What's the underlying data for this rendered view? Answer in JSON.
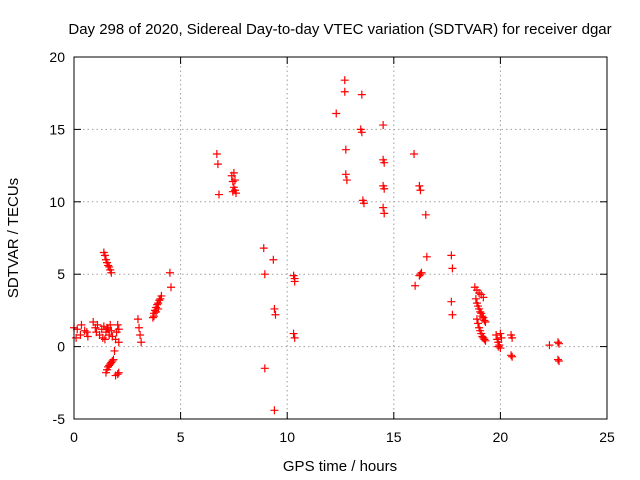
{
  "chart_data": {
    "type": "scatter",
    "title": "Day 298 of 2020, Sidereal Day-to-day VTEC variation (SDTVAR) for receiver dgar",
    "xlabel": "GPS time / hours",
    "ylabel": "SDTVAR / TECUs",
    "xlim": [
      0,
      25
    ],
    "ylim": [
      -5,
      20
    ],
    "xticks": [
      0,
      5,
      10,
      15,
      20,
      25
    ],
    "yticks": [
      -5,
      0,
      5,
      10,
      15,
      20
    ],
    "grid": true,
    "marker": "+",
    "series": [
      {
        "name": "SDTVAR",
        "color": "#ff0000",
        "points": [
          [
            0.0,
            1.3
          ],
          [
            0.1,
            0.6
          ],
          [
            0.15,
            1.2
          ],
          [
            0.3,
            0.8
          ],
          [
            0.35,
            1.5
          ],
          [
            0.5,
            1.1
          ],
          [
            0.6,
            1.0
          ],
          [
            0.65,
            0.7
          ],
          [
            0.9,
            1.7
          ],
          [
            1.0,
            1.3
          ],
          [
            1.05,
            1.0
          ],
          [
            1.1,
            1.5
          ],
          [
            1.2,
            0.8
          ],
          [
            1.3,
            1.2
          ],
          [
            1.35,
            0.6
          ],
          [
            1.4,
            1.4
          ],
          [
            1.45,
            0.5
          ],
          [
            1.5,
            1.0
          ],
          [
            1.55,
            1.3
          ],
          [
            1.6,
            1.2
          ],
          [
            1.65,
            0.8
          ],
          [
            1.7,
            1.5
          ],
          [
            1.75,
            1.1
          ],
          [
            1.8,
            0.7
          ],
          [
            1.4,
            6.5
          ],
          [
            1.45,
            6.3
          ],
          [
            1.5,
            6.0
          ],
          [
            1.55,
            5.8
          ],
          [
            1.6,
            5.6
          ],
          [
            1.65,
            5.5
          ],
          [
            1.7,
            5.3
          ],
          [
            1.75,
            5.1
          ],
          [
            1.5,
            -1.8
          ],
          [
            1.55,
            -1.6
          ],
          [
            1.6,
            -1.4
          ],
          [
            1.65,
            -1.3
          ],
          [
            1.7,
            -1.2
          ],
          [
            1.75,
            -1.1
          ],
          [
            1.8,
            -1.0
          ],
          [
            1.85,
            -0.9
          ],
          [
            1.9,
            -0.3
          ],
          [
            1.95,
            0.5
          ],
          [
            2.0,
            1.0
          ],
          [
            2.05,
            1.5
          ],
          [
            2.1,
            1.2
          ],
          [
            2.1,
            0.3
          ],
          [
            1.95,
            -2.0
          ],
          [
            2.05,
            -1.9
          ],
          [
            2.1,
            -1.8
          ],
          [
            3.0,
            1.9
          ],
          [
            3.05,
            1.3
          ],
          [
            3.1,
            0.8
          ],
          [
            3.15,
            0.3
          ],
          [
            3.7,
            2.0
          ],
          [
            3.75,
            2.3
          ],
          [
            3.8,
            2.5
          ],
          [
            3.85,
            2.7
          ],
          [
            3.9,
            2.9
          ],
          [
            3.95,
            3.0
          ],
          [
            4.0,
            3.2
          ],
          [
            4.05,
            3.3
          ],
          [
            4.1,
            3.5
          ],
          [
            3.75,
            2.1
          ],
          [
            3.85,
            2.4
          ],
          [
            3.95,
            2.6
          ],
          [
            4.5,
            5.1
          ],
          [
            4.55,
            4.1
          ],
          [
            6.7,
            13.3
          ],
          [
            6.75,
            12.6
          ],
          [
            6.8,
            10.5
          ],
          [
            7.4,
            11.8
          ],
          [
            7.45,
            11.4
          ],
          [
            7.5,
            11.0
          ],
          [
            7.55,
            10.8
          ],
          [
            7.6,
            10.6
          ],
          [
            7.5,
            12.0
          ],
          [
            7.55,
            11.5
          ],
          [
            7.45,
            10.7
          ],
          [
            8.9,
            6.8
          ],
          [
            8.95,
            5.0
          ],
          [
            8.95,
            -1.5
          ],
          [
            9.35,
            6.0
          ],
          [
            9.4,
            2.6
          ],
          [
            9.45,
            2.2
          ],
          [
            9.4,
            -4.4
          ],
          [
            10.3,
            4.9
          ],
          [
            10.35,
            4.7
          ],
          [
            10.35,
            4.5
          ],
          [
            10.3,
            0.9
          ],
          [
            10.35,
            0.6
          ],
          [
            12.3,
            16.1
          ],
          [
            12.7,
            18.4
          ],
          [
            12.7,
            17.6
          ],
          [
            12.75,
            13.6
          ],
          [
            12.75,
            11.9
          ],
          [
            12.8,
            11.5
          ],
          [
            13.5,
            17.4
          ],
          [
            13.45,
            15.0
          ],
          [
            13.5,
            14.8
          ],
          [
            13.55,
            10.1
          ],
          [
            13.6,
            9.9
          ],
          [
            14.5,
            15.3
          ],
          [
            14.5,
            12.9
          ],
          [
            14.55,
            12.7
          ],
          [
            14.5,
            11.1
          ],
          [
            14.55,
            10.9
          ],
          [
            14.5,
            9.6
          ],
          [
            14.55,
            9.2
          ],
          [
            15.95,
            13.3
          ],
          [
            16.0,
            4.2
          ],
          [
            16.2,
            11.1
          ],
          [
            16.25,
            10.8
          ],
          [
            16.2,
            4.9
          ],
          [
            16.25,
            5.0
          ],
          [
            16.3,
            5.1
          ],
          [
            16.5,
            9.1
          ],
          [
            16.55,
            6.2
          ],
          [
            17.7,
            6.3
          ],
          [
            17.75,
            5.4
          ],
          [
            17.7,
            3.1
          ],
          [
            17.75,
            2.2
          ],
          [
            18.8,
            4.1
          ],
          [
            18.9,
            3.9
          ],
          [
            19.0,
            3.7
          ],
          [
            19.1,
            3.6
          ],
          [
            19.2,
            3.4
          ],
          [
            18.85,
            3.3
          ],
          [
            18.9,
            3.0
          ],
          [
            18.95,
            2.8
          ],
          [
            19.0,
            2.6
          ],
          [
            19.05,
            2.4
          ],
          [
            19.1,
            2.3
          ],
          [
            19.15,
            2.1
          ],
          [
            19.2,
            2.0
          ],
          [
            19.25,
            1.8
          ],
          [
            19.3,
            1.7
          ],
          [
            18.9,
            1.9
          ],
          [
            18.95,
            1.6
          ],
          [
            19.0,
            1.3
          ],
          [
            19.05,
            1.1
          ],
          [
            19.1,
            0.9
          ],
          [
            19.15,
            0.7
          ],
          [
            19.2,
            0.6
          ],
          [
            19.25,
            0.5
          ],
          [
            19.3,
            0.4
          ],
          [
            19.8,
            0.8
          ],
          [
            19.85,
            0.5
          ],
          [
            19.9,
            0.3
          ],
          [
            19.95,
            0.1
          ],
          [
            20.0,
            0.9
          ],
          [
            20.05,
            0.6
          ],
          [
            19.9,
            0.0
          ],
          [
            20.0,
            -0.1
          ],
          [
            20.5,
            0.8
          ],
          [
            20.55,
            0.6
          ],
          [
            20.5,
            -0.6
          ],
          [
            20.55,
            -0.7
          ],
          [
            22.3,
            0.1
          ],
          [
            22.7,
            0.3
          ],
          [
            22.75,
            0.2
          ],
          [
            22.7,
            -0.9
          ],
          [
            22.75,
            -1.0
          ]
        ]
      }
    ]
  }
}
